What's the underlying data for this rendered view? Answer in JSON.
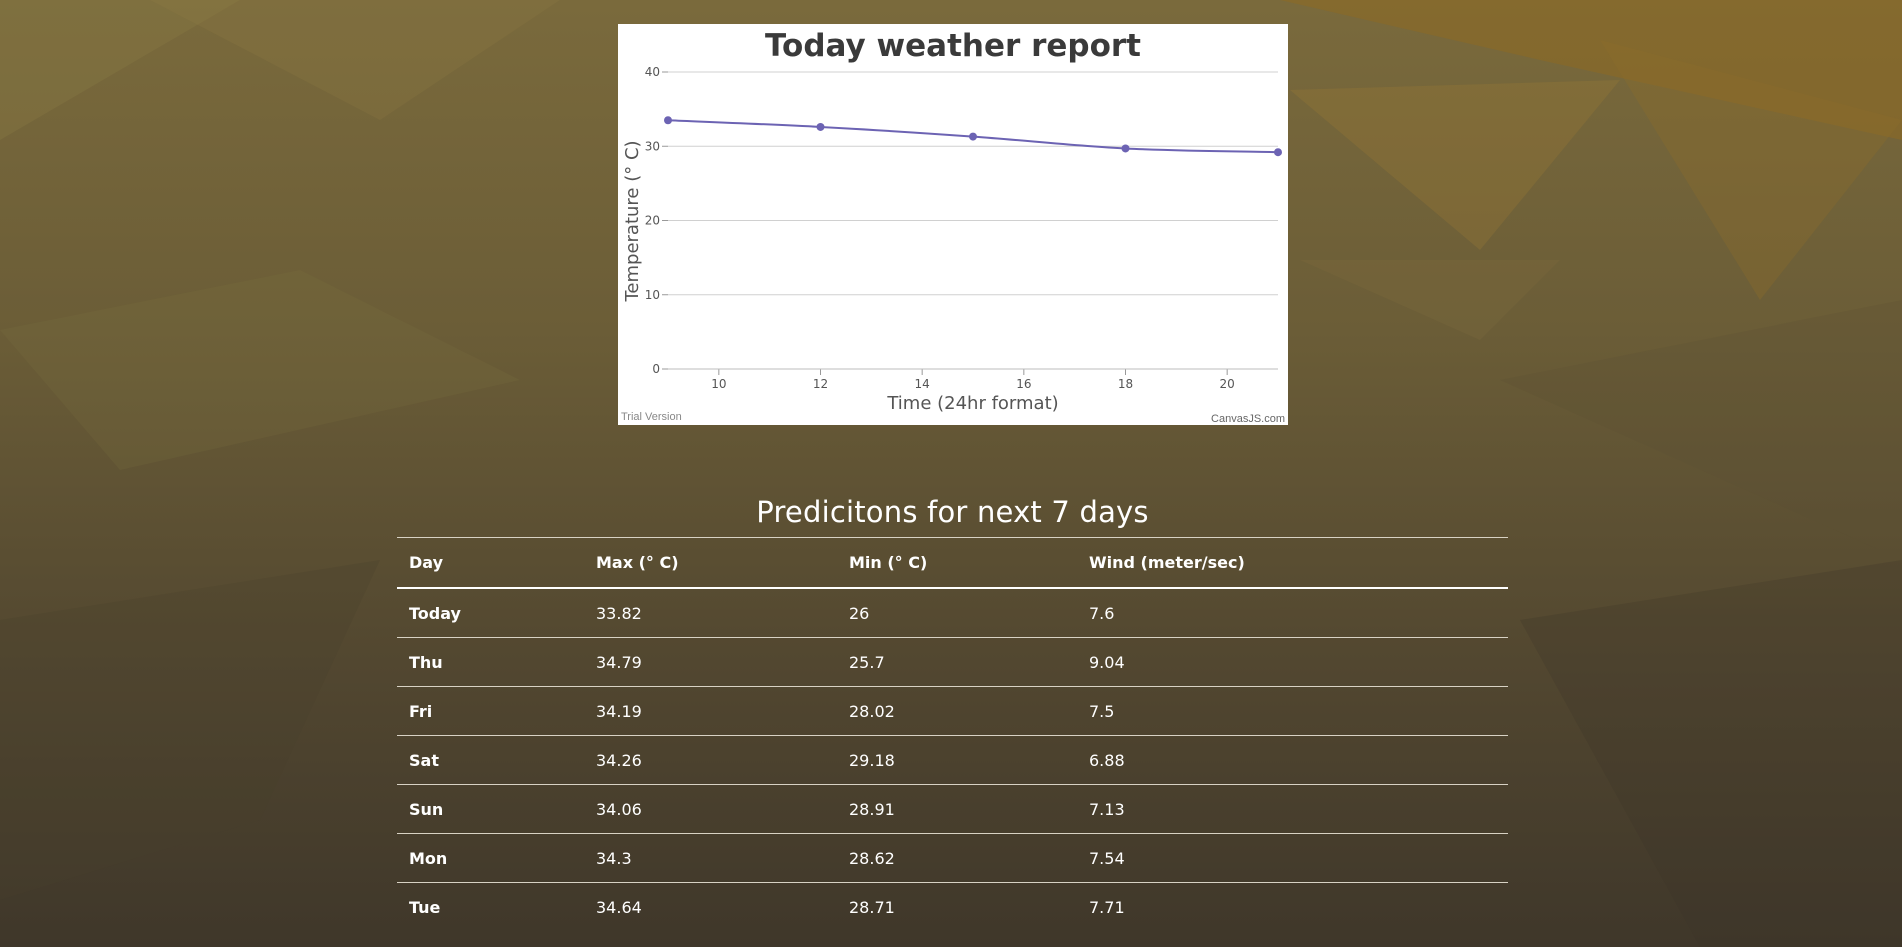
{
  "chart_data": {
    "type": "line",
    "title": "Today weather report",
    "xlabel": "Time (24hr format)",
    "ylabel": "Temperature (° C)",
    "xlim": [
      9,
      21
    ],
    "ylim": [
      0,
      40
    ],
    "x_ticks": [
      "10",
      "12",
      "14",
      "16",
      "18",
      "20"
    ],
    "y_ticks": [
      "0",
      "10",
      "20",
      "30",
      "40"
    ],
    "grid": "horizontal",
    "series": [
      {
        "x": [
          9,
          12,
          15,
          18,
          21
        ],
        "y": [
          33.5,
          32.6,
          31.3,
          29.7,
          29.2
        ]
      }
    ],
    "footer_left": "Trial Version",
    "footer_right": "CanvasJS.com",
    "colors": {
      "line": "#6c63b3",
      "grid": "#d0d0d0",
      "axis": "#999999"
    }
  },
  "forecast": {
    "title": "Predicitons for next 7 days",
    "columns": [
      "Day",
      "Max (° C)",
      "Min (° C)",
      "Wind (meter/sec)"
    ],
    "rows": [
      [
        "Today",
        "33.82",
        "26",
        "7.6"
      ],
      [
        "Thu",
        "34.79",
        "25.7",
        "9.04"
      ],
      [
        "Fri",
        "34.19",
        "28.02",
        "7.5"
      ],
      [
        "Sat",
        "34.26",
        "29.18",
        "6.88"
      ],
      [
        "Sun",
        "34.06",
        "28.91",
        "7.13"
      ],
      [
        "Mon",
        "34.3",
        "28.62",
        "7.54"
      ],
      [
        "Tue",
        "34.64",
        "28.71",
        "7.71"
      ]
    ]
  }
}
